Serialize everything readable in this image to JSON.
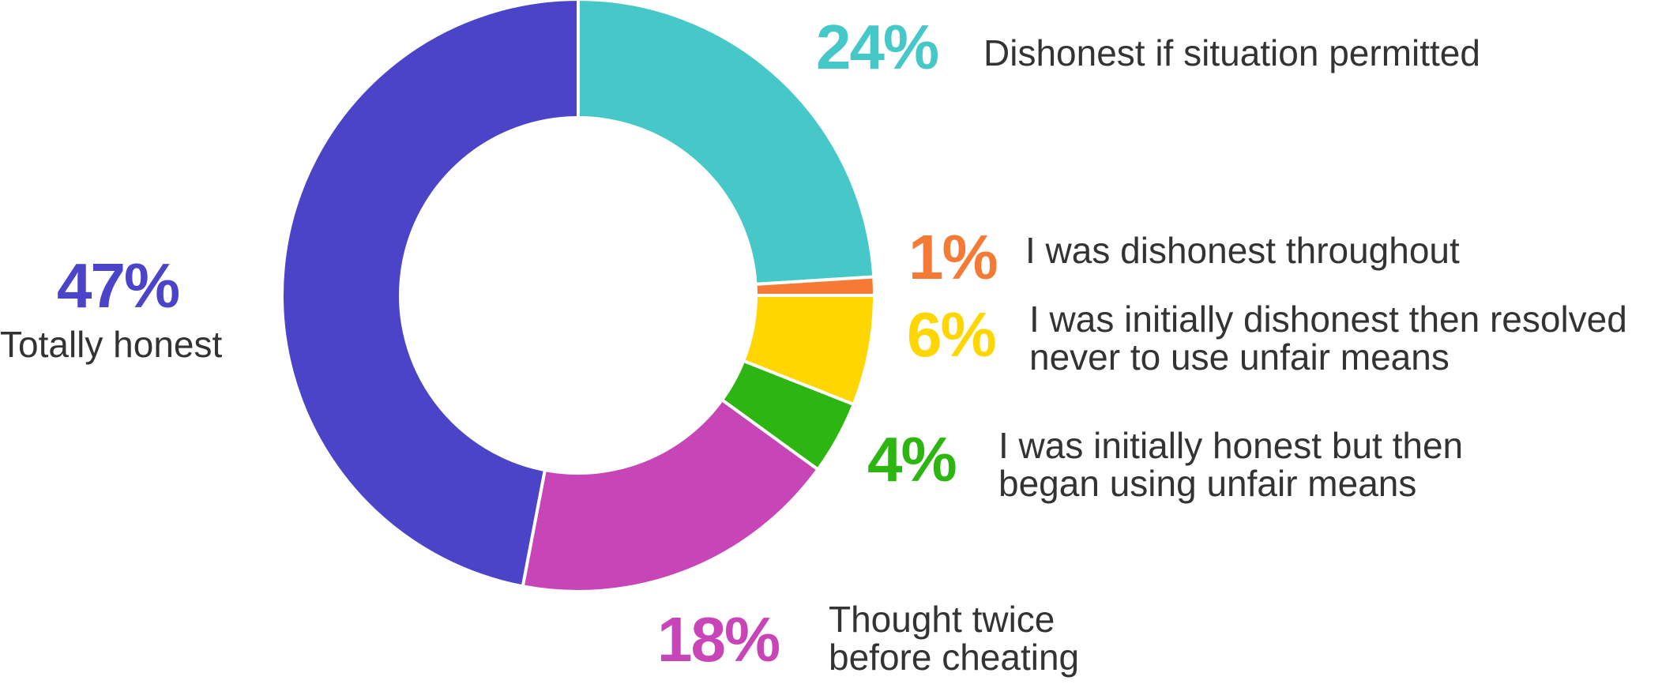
{
  "chart_data": {
    "type": "pie",
    "donut": true,
    "title": "",
    "slices": [
      {
        "label": "Dishonest if situation permitted",
        "value": 24,
        "display": "24%",
        "color": "#46C8C8"
      },
      {
        "label": "I was dishonest throughout",
        "value": 1,
        "display": "1%",
        "color": "#F57A35"
      },
      {
        "label": "I was initially dishonest then resolved never to use unfair means",
        "label_lines": [
          "I was initially dishonest then resolved",
          "never to use unfair means"
        ],
        "value": 6,
        "display": "6%",
        "color": "#FFD600"
      },
      {
        "label": "I was initially honest but then began using unfair means",
        "label_lines": [
          "I was initially honest but then",
          "began using unfair means"
        ],
        "value": 4,
        "display": "4%",
        "color": "#2DB511"
      },
      {
        "label": "Thought twice before cheating",
        "label_lines": [
          "Thought twice",
          "before cheating"
        ],
        "value": 18,
        "display": "18%",
        "color": "#C845B8"
      },
      {
        "label": "Totally honest",
        "value": 47,
        "display": "47%",
        "color": "#4B44C8"
      }
    ]
  }
}
